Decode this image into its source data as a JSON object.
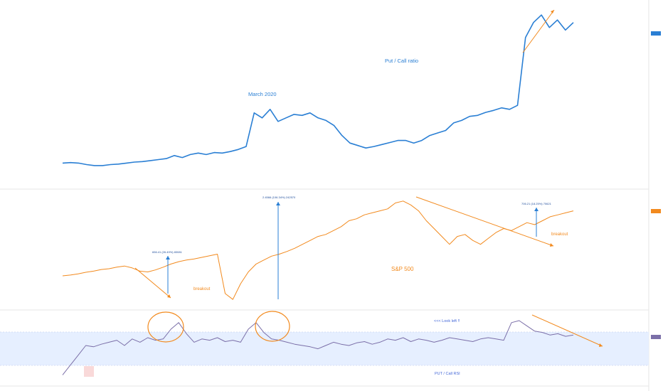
{
  "header": {
    "lines": [
      "",
      "",
      "",
      ""
    ]
  },
  "annotations": {
    "put_call_ratio": "Put / Call ratio",
    "march_2020": "March 2020",
    "sp500": "S&P 500",
    "breakout_left": "breakout",
    "breakout_right": "breakout",
    "look_left": "<<<  Look left !!",
    "put_call_rsi": "PUT / Call   RSI",
    "measure_1": "656.41 (26.49%) 83081",
    "measure_2": "2.4566 (106.34%) 242570",
    "measure_3": "706.21 (18.25%) 70621"
  },
  "colors": {
    "put_call_line": "#2a7fd4",
    "sp500_line": "#f28a1e",
    "rsi_line": "#7b6fa8",
    "rsi_band": "#e6efff",
    "annotation_orange": "#f28a1e",
    "measure_arrow": "#2a7fd4"
  },
  "chart_data": [
    {
      "type": "line",
      "panel": "top",
      "series": [
        {
          "values": [
            0.55,
            0.56,
            0.55,
            0.52,
            0.5,
            0.5,
            0.52,
            0.53,
            0.55,
            0.57,
            0.58,
            0.6,
            0.62,
            0.64,
            0.7,
            0.66,
            0.72,
            0.75,
            0.72,
            0.76,
            0.75,
            0.78,
            0.82,
            0.88,
            1.55,
            1.45,
            1.62,
            1.38,
            1.45,
            1.52,
            1.5,
            1.55,
            1.45,
            1.4,
            1.3,
            1.1,
            0.95,
            0.9,
            0.85,
            0.88,
            0.92,
            0.96,
            1.0,
            1.0,
            0.95,
            1.0,
            1.1,
            1.15,
            1.2,
            1.35,
            1.4,
            1.48,
            1.5,
            1.56,
            1.6,
            1.65,
            1.62,
            1.7,
            3.05,
            3.35,
            3.5,
            3.25,
            3.4,
            3.2,
            3.35
          ]
        }
      ]
    },
    {
      "type": "line",
      "panel": "middle",
      "series": [
        {
          "values": [
            2900,
            2920,
            2950,
            2990,
            3020,
            3060,
            3080,
            3120,
            3150,
            3100,
            3020,
            3000,
            3050,
            3120,
            3200,
            3260,
            3300,
            3330,
            3370,
            3410,
            3450,
            2450,
            2300,
            2700,
            3000,
            3200,
            3300,
            3400,
            3450,
            3520,
            3600,
            3700,
            3800,
            3900,
            3950,
            4050,
            4150,
            4300,
            4350,
            4450,
            4500,
            4550,
            4600,
            4750,
            4800,
            4700,
            4550,
            4300,
            4100,
            3900,
            3700,
            3900,
            3950,
            3800,
            3700,
            3850,
            4000,
            4100,
            4050,
            4150,
            4250,
            4200,
            4300,
            4400,
            4450,
            4500,
            4550
          ]
        }
      ]
    },
    {
      "type": "line",
      "panel": "bottom",
      "series": [
        {
          "values": [
            5,
            20,
            35,
            50,
            48,
            52,
            55,
            58,
            50,
            60,
            55,
            62,
            58,
            60,
            75,
            85,
            68,
            55,
            60,
            58,
            62,
            56,
            58,
            55,
            75,
            85,
            70,
            60,
            58,
            55,
            52,
            50,
            48,
            45,
            50,
            55,
            52,
            50,
            54,
            56,
            52,
            55,
            60,
            58,
            62,
            56,
            60,
            58,
            55,
            58,
            62,
            60,
            58,
            56,
            60,
            62,
            60,
            58,
            85,
            88,
            80,
            72,
            70,
            66,
            68,
            64,
            66
          ]
        }
      ]
    }
  ]
}
